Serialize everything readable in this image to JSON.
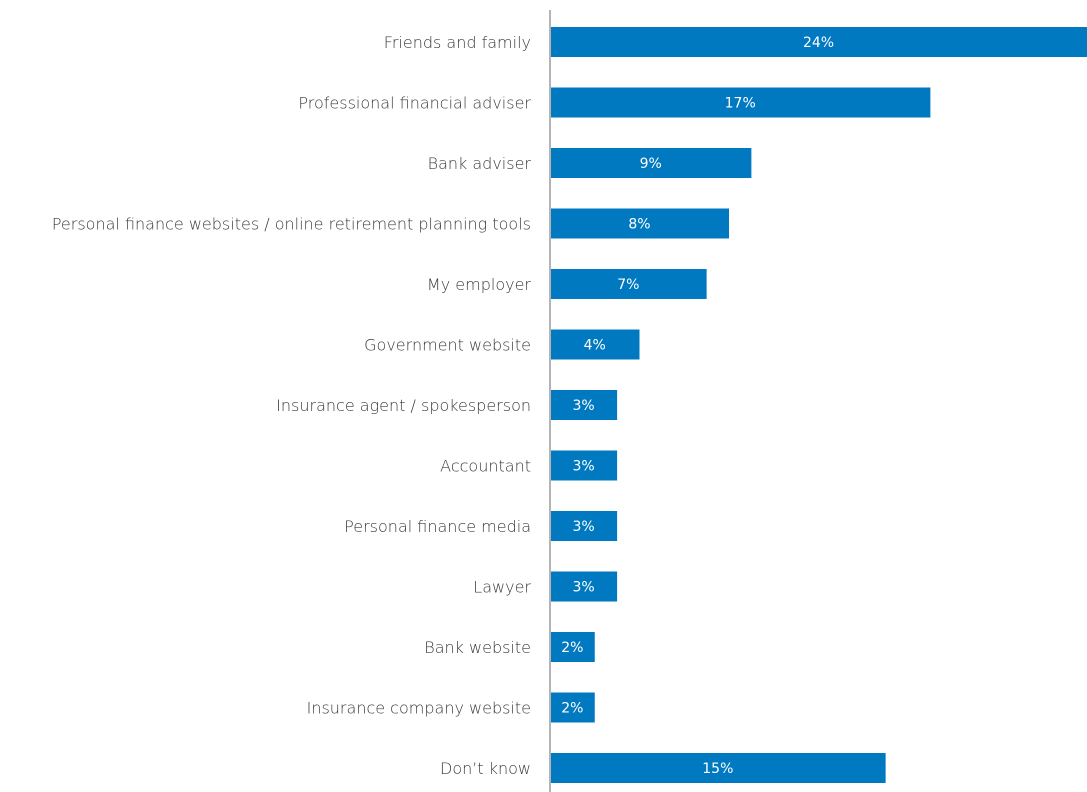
{
  "chart_data": {
    "type": "bar",
    "orientation": "horizontal",
    "categories": [
      "Friends and family",
      "Professional financial adviser",
      "Bank adviser",
      "Personal finance websites / online retirement planning tools",
      "My employer",
      "Government website",
      "Insurance agent / spokesperson",
      "Accountant",
      "Personal finance media",
      "Lawyer",
      "Bank website",
      "Insurance company website",
      "Don’t know"
    ],
    "values": [
      24,
      17,
      9,
      8,
      7,
      4,
      3,
      3,
      3,
      3,
      2,
      2,
      15
    ],
    "value_labels": [
      "24%",
      "17%",
      "9%",
      "8%",
      "7%",
      "4%",
      "3%",
      "3%",
      "3%",
      "3%",
      "2%",
      "2%",
      "15%"
    ],
    "xlim": [
      0,
      24
    ],
    "unit": "%",
    "grid": false,
    "legend": "none",
    "title": "",
    "xlabel": "",
    "ylabel": "",
    "colors": {
      "bar": "#0179c1",
      "axis": "#b4b4b4",
      "label": "#3a3a3a",
      "value_text": "#ffffff"
    }
  }
}
